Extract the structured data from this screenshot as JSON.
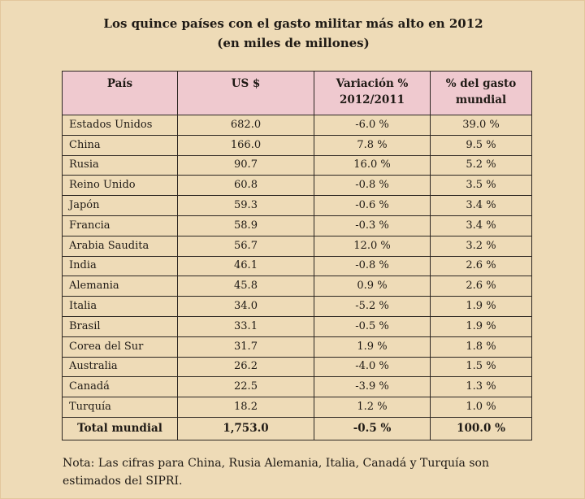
{
  "title": {
    "line1": "Los quince países con el gasto militar más alto en 2012",
    "line2": "(en miles de millones)"
  },
  "table": {
    "headers": {
      "pais": "País",
      "us": "US $",
      "variation_line1": "Variación %",
      "variation_line2": "2012/2011",
      "pct_line1": "% del gasto",
      "pct_line2": "mundial"
    },
    "rows": [
      {
        "pais": "Estados Unidos",
        "us": "682.0",
        "variacion": "-6.0 %",
        "pct": "39.0 %"
      },
      {
        "pais": "China",
        "us": "166.0",
        "variacion": "7.8 %",
        "pct": "9.5 %"
      },
      {
        "pais": "Rusia",
        "us": "90.7",
        "variacion": "16.0 %",
        "pct": "5.2 %"
      },
      {
        "pais": "Reino Unido",
        "us": "60.8",
        "variacion": "-0.8 %",
        "pct": "3.5 %"
      },
      {
        "pais": "Japón",
        "us": "59.3",
        "variacion": "-0.6 %",
        "pct": "3.4 %"
      },
      {
        "pais": "Francia",
        "us": "58.9",
        "variacion": "-0.3 %",
        "pct": "3.4 %"
      },
      {
        "pais": "Arabia Saudita",
        "us": "56.7",
        "variacion": "12.0 %",
        "pct": "3.2 %"
      },
      {
        "pais": "India",
        "us": "46.1",
        "variacion": "-0.8 %",
        "pct": "2.6 %"
      },
      {
        "pais": "Alemania",
        "us": "45.8",
        "variacion": "0.9 %",
        "pct": "2.6 %"
      },
      {
        "pais": "Italia",
        "us": "34.0",
        "variacion": "-5.2 %",
        "pct": "1.9 %"
      },
      {
        "pais": "Brasil",
        "us": "33.1",
        "variacion": "-0.5 %",
        "pct": "1.9 %"
      },
      {
        "pais": "Corea del Sur",
        "us": "31.7",
        "variacion": "1.9 %",
        "pct": "1.8 %"
      },
      {
        "pais": "Australia",
        "us": "26.2",
        "variacion": "-4.0 %",
        "pct": "1.5 %"
      },
      {
        "pais": "Canadá",
        "us": "22.5",
        "variacion": "-3.9 %",
        "pct": "1.3 %"
      },
      {
        "pais": "Turquía",
        "us": "18.2",
        "variacion": "1.2 %",
        "pct": "1.0 %"
      }
    ],
    "total": {
      "pais": "Total mundial",
      "us": "1,753.0",
      "variacion": "-0.5 %",
      "pct": "100.0 %"
    }
  },
  "note": {
    "line1": "Nota: Las cifras para China, Rusia Alemania, Italia, Canadá y Turquía son",
    "line2": "estimados del SIPRI."
  },
  "colors": {
    "page_background": "#eedbb7",
    "header_background": "#efc9cf",
    "text": "#1f1a15",
    "grid": "#2d2722"
  }
}
